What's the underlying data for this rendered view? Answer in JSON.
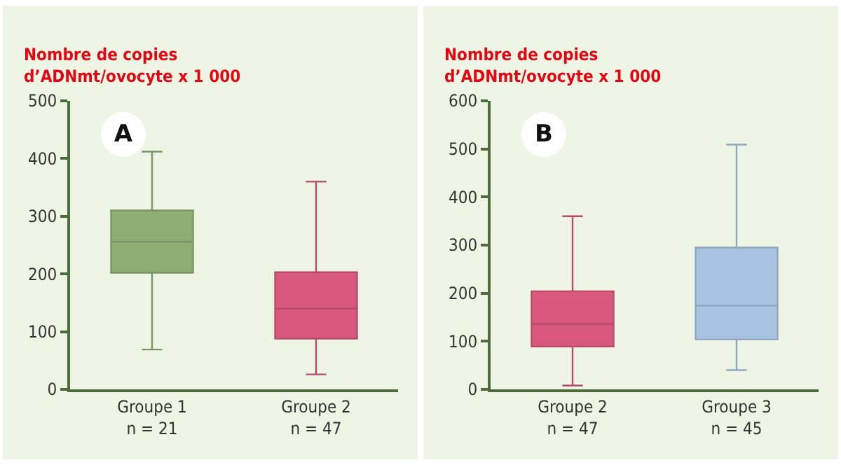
{
  "chart_data": [
    {
      "type": "box",
      "ylabel": "Nombre de copies\nd’ADNmt/ovocyte x 1 000",
      "annotations": [
        "A"
      ],
      "categories": [
        "Groupe 1\nn = 21",
        "Groupe 2\nn = 47"
      ],
      "boxes": [
        {
          "low": 69,
          "q1": 202,
          "median": 256,
          "q3": 310,
          "high": 412
        },
        {
          "low": 26,
          "q1": 88,
          "median": 140,
          "q3": 203,
          "high": 360
        }
      ],
      "colors": [
        "#8fae76",
        "#d9587e"
      ],
      "ylim": [
        0,
        500
      ],
      "yticks": [
        0,
        100,
        200,
        300,
        400,
        500
      ],
      "grid": false,
      "legend": false
    },
    {
      "type": "box",
      "ylabel": "Nombre de copies\nd’ADNmt/ovocyte x 1 000",
      "annotations": [
        "B"
      ],
      "categories": [
        "Groupe 2\nn = 47",
        "Groupe 3\nn = 45"
      ],
      "boxes": [
        {
          "low": 8,
          "q1": 89,
          "median": 136,
          "q3": 204,
          "high": 360
        },
        {
          "low": 40,
          "q1": 104,
          "median": 174,
          "q3": 295,
          "high": 509
        }
      ],
      "colors": [
        "#d9587e",
        "#a9c4e2"
      ],
      "ylim": [
        0,
        600
      ],
      "yticks": [
        0,
        100,
        200,
        300,
        400,
        500,
        600
      ],
      "grid": false,
      "legend": false
    }
  ]
}
